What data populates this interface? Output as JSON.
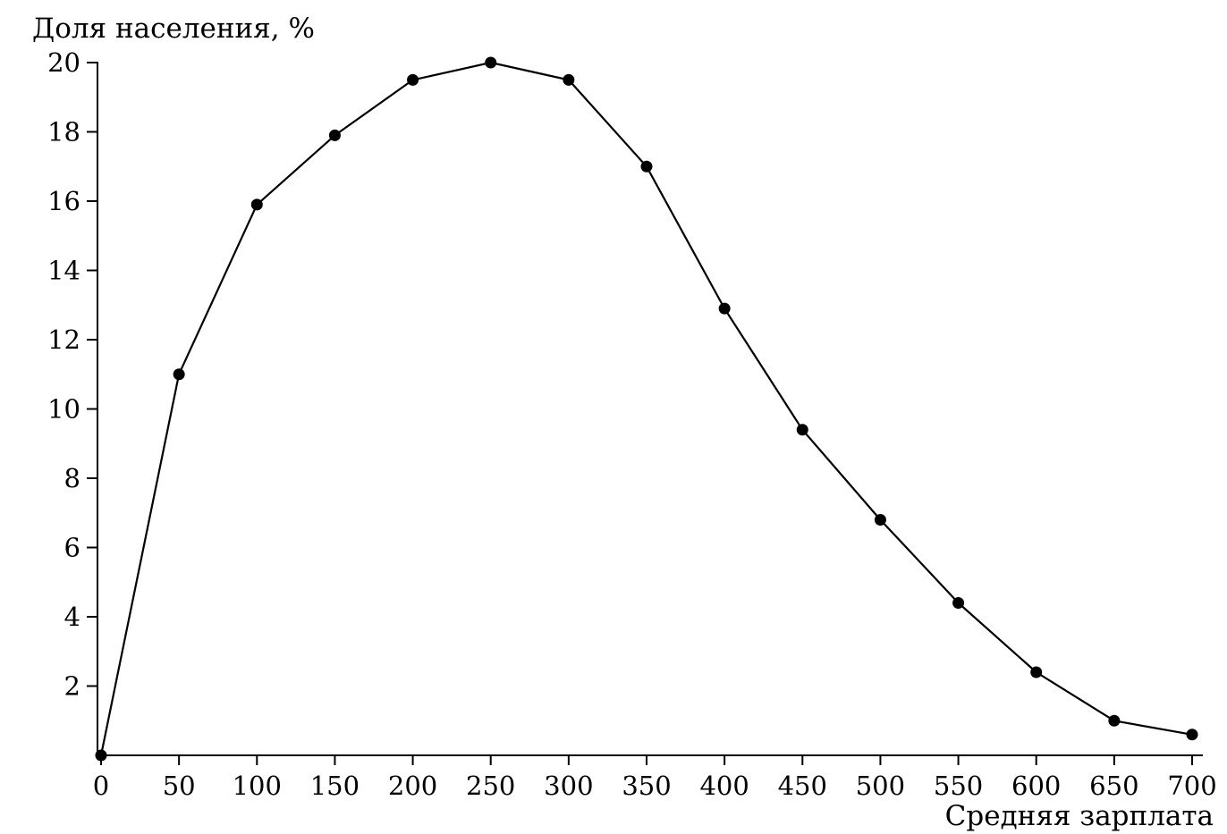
{
  "chart_data": {
    "type": "line",
    "ylabel": "Доля населения, %",
    "xlabel": "Средняя зарплата",
    "x_ticks": [
      0,
      50,
      100,
      150,
      200,
      250,
      300,
      350,
      400,
      450,
      500,
      550,
      600,
      650,
      700
    ],
    "y_ticks": [
      2,
      4,
      6,
      8,
      10,
      12,
      14,
      16,
      18,
      20
    ],
    "xlim": [
      0,
      700
    ],
    "ylim": [
      0,
      20
    ],
    "grid": false,
    "legend": "none",
    "series": [
      {
        "x": [
          0,
          50,
          100,
          150,
          200,
          250,
          300,
          350,
          400,
          450,
          500,
          550,
          600,
          650,
          700
        ],
        "y": [
          0,
          11,
          15.9,
          17.9,
          19.5,
          20,
          19.5,
          17,
          12.9,
          9.4,
          6.8,
          4.4,
          2.4,
          1.0,
          0.6
        ]
      }
    ],
    "colors": {
      "line": "#000000",
      "marker": "#000000"
    }
  }
}
